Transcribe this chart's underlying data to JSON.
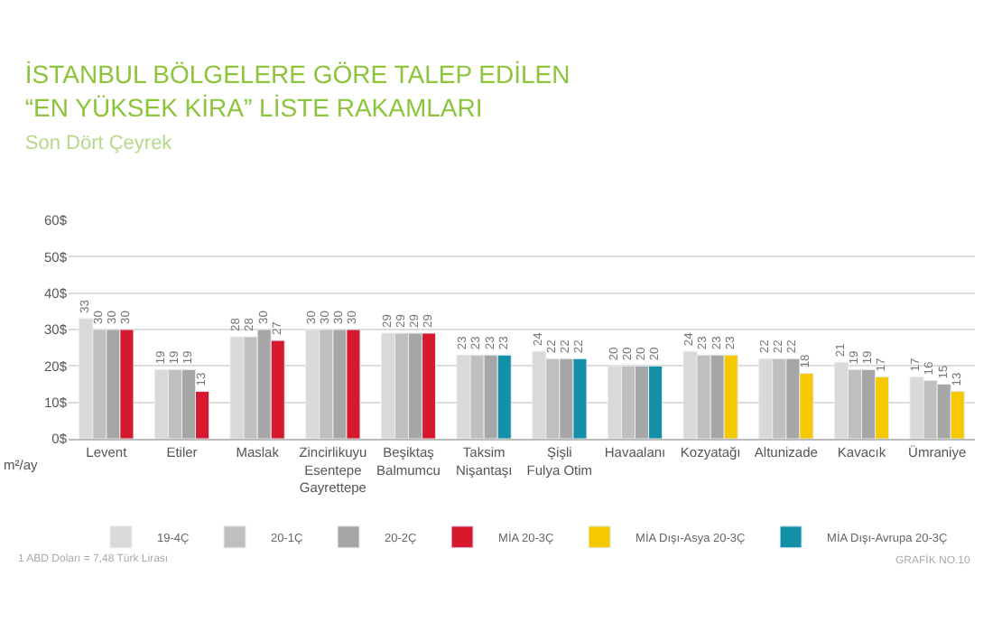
{
  "chart_data": {
    "type": "bar",
    "title": "İSTANBUL BÖLGELERE GÖRE TALEP EDİLEN\n“EN YÜKSEK KİRA” LİSTE RAKAMLARI",
    "subtitle": "Son Dört Çeyrek",
    "ylabel": "m²/ay",
    "categories": [
      "Levent",
      "Etiler",
      "Maslak",
      "Zincirlikuyu\nEsentepe\nGayrettepe",
      "Beşiktaş\nBalmumcu",
      "Taksim\nNişantaşı",
      "Şişli\nFulya Otim",
      "Havaalanı",
      "Kozyatağı",
      "Altunizade",
      "Kavacık",
      "Ümraniye"
    ],
    "series": [
      {
        "name": "19-4Ç",
        "color": "#d9d9d9",
        "values": [
          33,
          19,
          28,
          30,
          29,
          23,
          24,
          20,
          24,
          22,
          21,
          17
        ]
      },
      {
        "name": "20-1Ç",
        "color": "#bfbfbf",
        "values": [
          30,
          19,
          28,
          30,
          29,
          23,
          22,
          20,
          23,
          22,
          19,
          16
        ]
      },
      {
        "name": "20-2Ç",
        "color": "#a6a6a6",
        "values": [
          30,
          19,
          30,
          30,
          29,
          23,
          22,
          20,
          23,
          22,
          19,
          15
        ]
      },
      {
        "name": "MİA 20-3Ç",
        "color": "#d7192d",
        "values": [
          30,
          13,
          27,
          30,
          29,
          null,
          null,
          null,
          null,
          null,
          null,
          null
        ]
      },
      {
        "name": "MİA Dışı-Asya 20-3Ç",
        "color": "#f5c800",
        "values": [
          null,
          null,
          null,
          null,
          null,
          null,
          null,
          null,
          23,
          18,
          17,
          13
        ]
      },
      {
        "name": "MİA Dışı-Avrupa 20-3Ç",
        "color": "#1390a8",
        "values": [
          null,
          null,
          null,
          null,
          null,
          23,
          22,
          20,
          null,
          null,
          null,
          null
        ]
      }
    ],
    "ylim": [
      0,
      60
    ],
    "yticks": [
      {
        "value": 0,
        "label": "0$"
      },
      {
        "value": 10,
        "label": "10$"
      },
      {
        "value": 20,
        "label": "20$"
      },
      {
        "value": 30,
        "label": "30$"
      },
      {
        "value": 40,
        "label": "40$"
      },
      {
        "value": 50,
        "label": "50$"
      },
      {
        "value": 60,
        "label": "60$"
      }
    ],
    "grid": "y",
    "legend": "bottom",
    "data_labels": true,
    "annotations": [
      "1 ABD Doları = 7,48 Türk Lirası",
      "GRAFİK NO.10"
    ]
  }
}
